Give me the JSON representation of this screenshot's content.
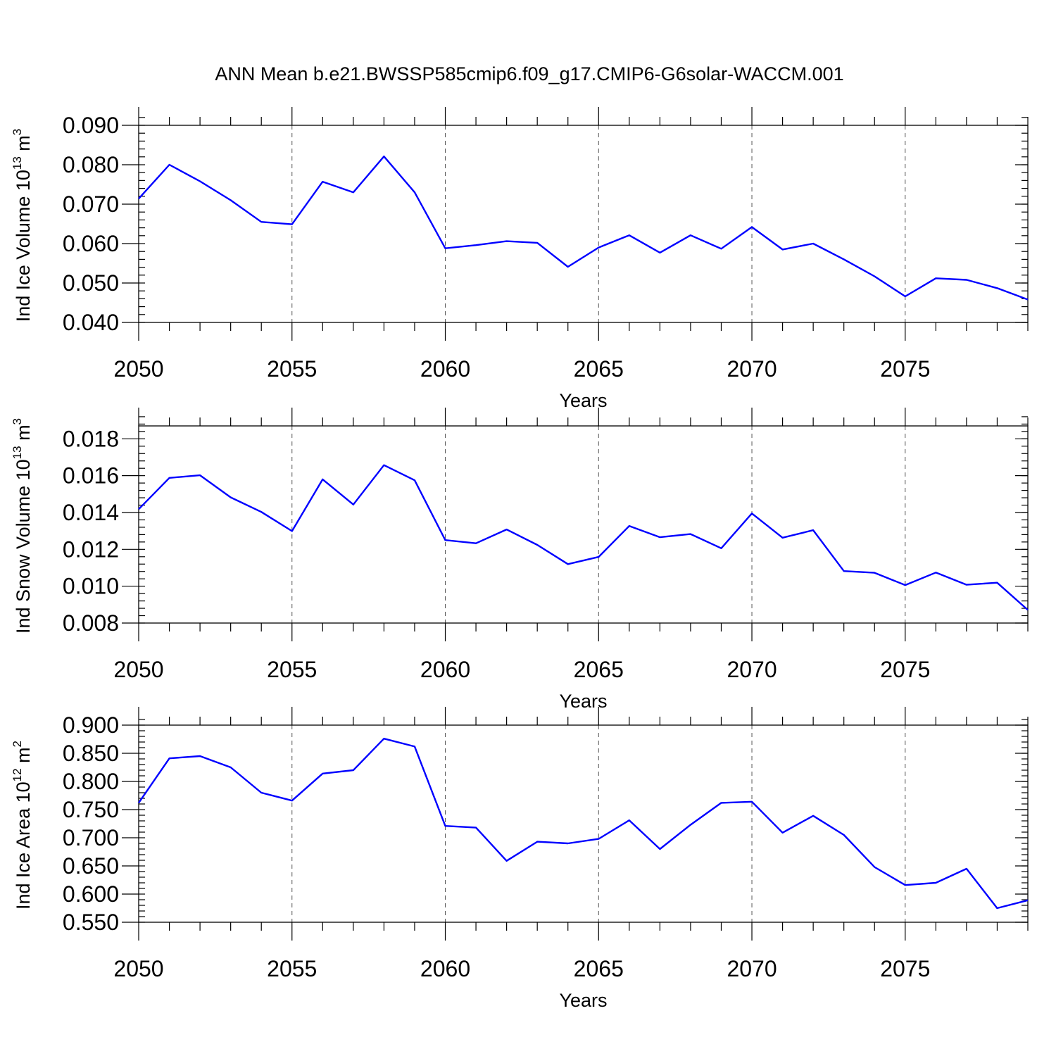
{
  "title": "ANN Mean b.e21.BWSSP585cmip6.f09_g17.CMIP6-G6solar-WACCM.001",
  "colors": {
    "line": "#0000ff",
    "axis": "#000000",
    "grid": "#555555"
  },
  "chart_data": [
    {
      "type": "line",
      "ylabel_main": "Ind Ice Volume 10",
      "ylabel_exp": "13",
      "ylabel_unit": " m",
      "ylabel_unit_exp": "3",
      "xlabel": "Years",
      "xlim": [
        2050,
        2079
      ],
      "ylim": [
        0.04,
        0.09
      ],
      "yticks": [
        0.04,
        0.05,
        0.06,
        0.07,
        0.08,
        0.09
      ],
      "ytick_labels": [
        "0.040",
        "0.050",
        "0.060",
        "0.070",
        "0.080",
        "0.090"
      ],
      "yminor_step": 0.002,
      "xticks": [
        2050,
        2055,
        2060,
        2065,
        2070,
        2075
      ],
      "xtick_labels": [
        "2050",
        "2055",
        "2060",
        "2065",
        "2070",
        "2075"
      ],
      "grid_x": [
        2055,
        2060,
        2065,
        2070,
        2075
      ],
      "x": [
        2050,
        2051,
        2052,
        2053,
        2054,
        2055,
        2056,
        2057,
        2058,
        2059,
        2060,
        2061,
        2062,
        2063,
        2064,
        2065,
        2066,
        2067,
        2068,
        2069,
        2070,
        2071,
        2072,
        2073,
        2074,
        2075,
        2076,
        2077,
        2078,
        2079
      ],
      "values": [
        0.0714,
        0.08,
        0.0758,
        0.071,
        0.0655,
        0.0649,
        0.0757,
        0.073,
        0.0821,
        0.073,
        0.0588,
        0.0596,
        0.0606,
        0.0602,
        0.0541,
        0.059,
        0.0621,
        0.0577,
        0.0621,
        0.0587,
        0.0642,
        0.0585,
        0.06,
        0.056,
        0.0517,
        0.0466,
        0.0512,
        0.0508,
        0.0487,
        0.0458
      ]
    },
    {
      "type": "line",
      "ylabel_main": "Ind Snow Volume 10",
      "ylabel_exp": "13",
      "ylabel_unit": " m",
      "ylabel_unit_exp": "3",
      "xlabel": "Years",
      "xlim": [
        2050,
        2079
      ],
      "ylim": [
        0.008,
        0.0187
      ],
      "yticks": [
        0.008,
        0.01,
        0.012,
        0.014,
        0.016,
        0.018
      ],
      "ytick_labels": [
        "0.008",
        "0.010",
        "0.012",
        "0.014",
        "0.016",
        "0.018"
      ],
      "yminor_step": 0.0004,
      "xticks": [
        2050,
        2055,
        2060,
        2065,
        2070,
        2075
      ],
      "xtick_labels": [
        "2050",
        "2055",
        "2060",
        "2065",
        "2070",
        "2075"
      ],
      "grid_x": [
        2055,
        2060,
        2065,
        2070,
        2075
      ],
      "x": [
        2050,
        2051,
        2052,
        2053,
        2054,
        2055,
        2056,
        2057,
        2058,
        2059,
        2060,
        2061,
        2062,
        2063,
        2064,
        2065,
        2066,
        2067,
        2068,
        2069,
        2070,
        2071,
        2072,
        2073,
        2074,
        2075,
        2076,
        2077,
        2078,
        2079
      ],
      "values": [
        0.01418,
        0.01588,
        0.01602,
        0.01482,
        0.01403,
        0.01299,
        0.0158,
        0.01443,
        0.01657,
        0.01575,
        0.0125,
        0.01233,
        0.01308,
        0.01224,
        0.0112,
        0.01159,
        0.01327,
        0.01266,
        0.01283,
        0.01206,
        0.01395,
        0.01263,
        0.01304,
        0.01082,
        0.01073,
        0.01006,
        0.01074,
        0.01008,
        0.01019,
        0.00871
      ]
    },
    {
      "type": "line",
      "ylabel_main": "Ind Ice Area 10",
      "ylabel_exp": "12",
      "ylabel_unit": " m",
      "ylabel_unit_exp": "2",
      "xlabel": "Years",
      "xlim": [
        2050,
        2079
      ],
      "ylim": [
        0.55,
        0.9
      ],
      "yticks": [
        0.55,
        0.6,
        0.65,
        0.7,
        0.75,
        0.8,
        0.85,
        0.9
      ],
      "ytick_labels": [
        "0.550",
        "0.600",
        "0.650",
        "0.700",
        "0.750",
        "0.800",
        "0.850",
        "0.900"
      ],
      "yminor_step": 0.01,
      "xticks": [
        2050,
        2055,
        2060,
        2065,
        2070,
        2075
      ],
      "xtick_labels": [
        "2050",
        "2055",
        "2060",
        "2065",
        "2070",
        "2075"
      ],
      "grid_x": [
        2055,
        2060,
        2065,
        2070,
        2075
      ],
      "x": [
        2050,
        2051,
        2052,
        2053,
        2054,
        2055,
        2056,
        2057,
        2058,
        2059,
        2060,
        2061,
        2062,
        2063,
        2064,
        2065,
        2066,
        2067,
        2068,
        2069,
        2070,
        2071,
        2072,
        2073,
        2074,
        2075,
        2076,
        2077,
        2078,
        2079
      ],
      "values": [
        0.762,
        0.841,
        0.845,
        0.825,
        0.78,
        0.766,
        0.814,
        0.82,
        0.876,
        0.862,
        0.721,
        0.718,
        0.659,
        0.693,
        0.69,
        0.698,
        0.731,
        0.68,
        0.723,
        0.762,
        0.764,
        0.709,
        0.739,
        0.705,
        0.648,
        0.616,
        0.62,
        0.645,
        0.575,
        0.589
      ]
    }
  ]
}
